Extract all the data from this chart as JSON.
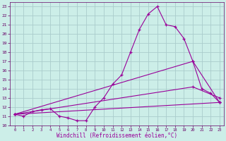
{
  "xlabel": "Windchill (Refroidissement éolien,°C)",
  "bg_color": "#cceee8",
  "grid_color": "#aacccc",
  "line_color": "#990099",
  "spine_color": "#660066",
  "xlim": [
    -0.5,
    23.5
  ],
  "ylim": [
    10,
    23.5
  ],
  "xticks": [
    0,
    1,
    2,
    3,
    4,
    5,
    6,
    7,
    8,
    9,
    10,
    11,
    12,
    13,
    14,
    15,
    16,
    17,
    18,
    19,
    20,
    21,
    22,
    23
  ],
  "yticks": [
    10,
    11,
    12,
    13,
    14,
    15,
    16,
    17,
    18,
    19,
    20,
    21,
    22,
    23
  ],
  "line1_x": [
    0,
    1,
    2,
    3,
    4,
    5,
    6,
    7,
    8,
    9,
    10,
    11,
    12,
    13,
    14,
    15,
    16,
    17,
    18,
    19,
    20,
    21,
    22,
    23
  ],
  "line1_y": [
    11.2,
    11.0,
    11.5,
    11.7,
    11.8,
    11.0,
    10.8,
    10.5,
    10.5,
    12.0,
    13.0,
    14.5,
    15.5,
    18.0,
    20.5,
    22.2,
    23.0,
    21.0,
    20.8,
    19.5,
    17.0,
    14.0,
    13.5,
    12.5
  ],
  "line2_x": [
    0,
    23
  ],
  "line2_y": [
    11.2,
    12.5
  ],
  "line3_x": [
    0,
    20,
    23
  ],
  "line3_y": [
    11.2,
    14.2,
    13.0
  ],
  "line4_x": [
    0,
    20,
    23
  ],
  "line4_y": [
    11.2,
    17.0,
    12.5
  ],
  "tick_fontsize": 4.5,
  "xlabel_fontsize": 5.5
}
